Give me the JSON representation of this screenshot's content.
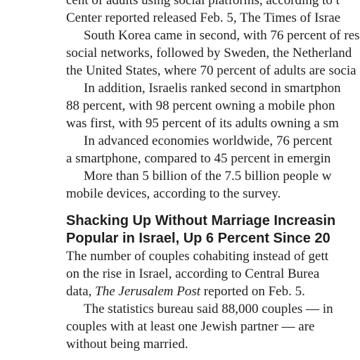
{
  "section_one": {
    "lines": [
      "cent of adults using social platforms, according to t",
      "Center reported released Feb. 5, The Times of Israe",
      "South Korea came in second, with 76 percent of res",
      "social networks, followed by Sweden, the Netherland",
      "the United States, where 70 percent of adults are socia",
      "In addition, Israelis ranked second in smartphon",
      "88 percent, with 98 percent owning a mobile phon",
      "was first, with 95 percent of its adults owning a sm",
      "In advanced economies worldwide, 76 percent",
      "a smartphone, compared to 45 percent in emergin",
      "More than 5 billion of the 7.5 billion people w",
      "mobile devices, according to the survey."
    ]
  },
  "headline": {
    "line1": "Shacking Up Without Marriage Increasin",
    "line2": "Popular in Israel, Up 6 Percent Since 20"
  },
  "section_two": {
    "line1": "The number of couples cohabiting instead of gett",
    "line2": "on the rise in Israel, according to Central Burea",
    "line3_before": "data, ",
    "line3_italic": "The Jerusalem Post",
    "line3_after": " reported on Feb. 5.",
    "line4": "The statistics bureau said 88,000 couples — in",
    "line5": "couples with at least one Jewish partner — are",
    "line6": "without being married."
  }
}
